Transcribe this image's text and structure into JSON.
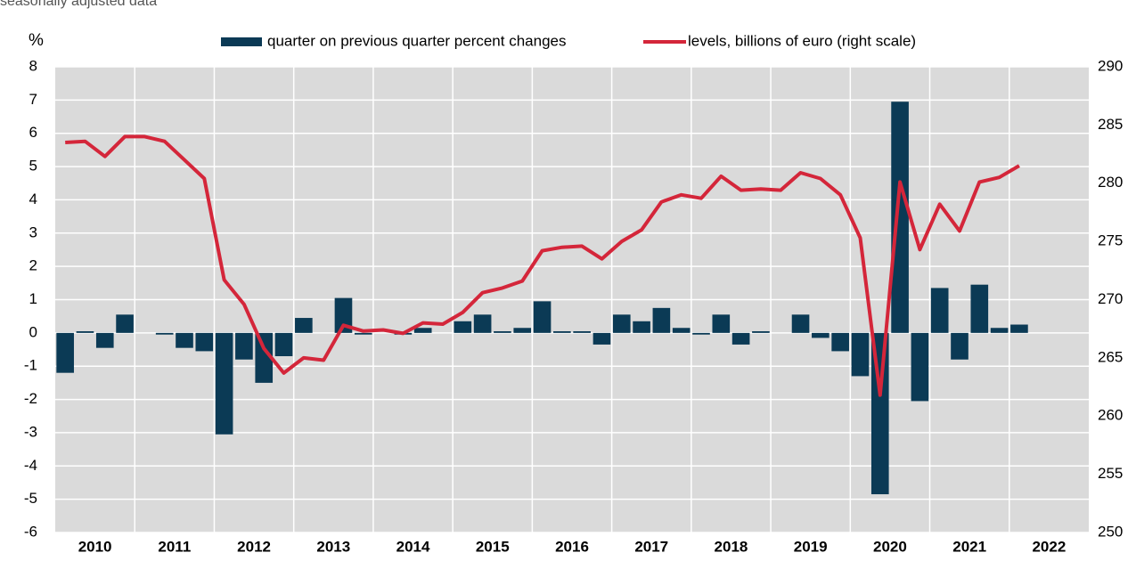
{
  "chart_data": {
    "type": "bar-line",
    "subtitle": "seasonally adjusted data",
    "y_label": "%",
    "categories": [
      "2010",
      null,
      null,
      null,
      "2011",
      null,
      null,
      null,
      "2012",
      null,
      null,
      null,
      "2013",
      null,
      null,
      null,
      "2014",
      null,
      null,
      null,
      "2015",
      null,
      null,
      null,
      "2016",
      null,
      null,
      null,
      "2017",
      null,
      null,
      null,
      "2018",
      null,
      null,
      null,
      "2019",
      null,
      null,
      null,
      "2020",
      null,
      null,
      null,
      "2021",
      null,
      null,
      null,
      "2022",
      null,
      null,
      null
    ],
    "series": [
      {
        "name": "quarter on previous quarter percent changes",
        "color": "#0b3a55",
        "type": "bar",
        "values": [
          -1.2,
          0.05,
          -0.45,
          0.55,
          0.0,
          -0.05,
          -0.45,
          -0.55,
          -3.05,
          -0.8,
          -1.5,
          -0.7,
          0.45,
          0.0,
          1.05,
          -0.05,
          0.0,
          -0.05,
          0.15,
          0.0,
          0.35,
          0.55,
          0.05,
          0.15,
          0.95,
          0.05,
          0.05,
          -0.35,
          0.55,
          0.35,
          0.75,
          0.15,
          -0.05,
          0.55,
          -0.35,
          0.05,
          0.0,
          0.55,
          -0.15,
          -0.55,
          -1.3,
          -4.85,
          6.95,
          -2.05,
          1.35,
          -0.8,
          1.45,
          0.15,
          0.25,
          null,
          null,
          null
        ]
      },
      {
        "name": "levels, billions of euro (right scale)",
        "color": "#d4263a",
        "type": "line",
        "axis": "y2",
        "values": [
          283.5,
          283.6,
          282.3,
          284.0,
          284.0,
          283.6,
          282.0,
          280.4,
          271.7,
          269.6,
          265.8,
          263.7,
          265.0,
          264.8,
          267.8,
          267.3,
          267.4,
          267.1,
          268.0,
          267.9,
          268.9,
          270.6,
          271.0,
          271.6,
          274.2,
          274.5,
          274.6,
          273.5,
          275.0,
          276.0,
          278.4,
          279.0,
          278.7,
          280.6,
          279.4,
          279.5,
          279.4,
          280.9,
          280.4,
          279.0,
          275.3,
          261.8,
          280.1,
          274.3,
          278.2,
          275.9,
          280.1,
          280.5,
          281.5,
          null,
          null,
          null
        ]
      }
    ],
    "ylim": [
      -6,
      8
    ],
    "yticks": [
      -6,
      -5,
      -4,
      -3,
      -2,
      -1,
      0,
      1,
      2,
      3,
      4,
      5,
      6,
      7,
      8
    ],
    "y2lim": [
      250,
      290
    ],
    "y2ticks": [
      250,
      255,
      260,
      265,
      270,
      275,
      280,
      285,
      290
    ],
    "grid": true
  }
}
